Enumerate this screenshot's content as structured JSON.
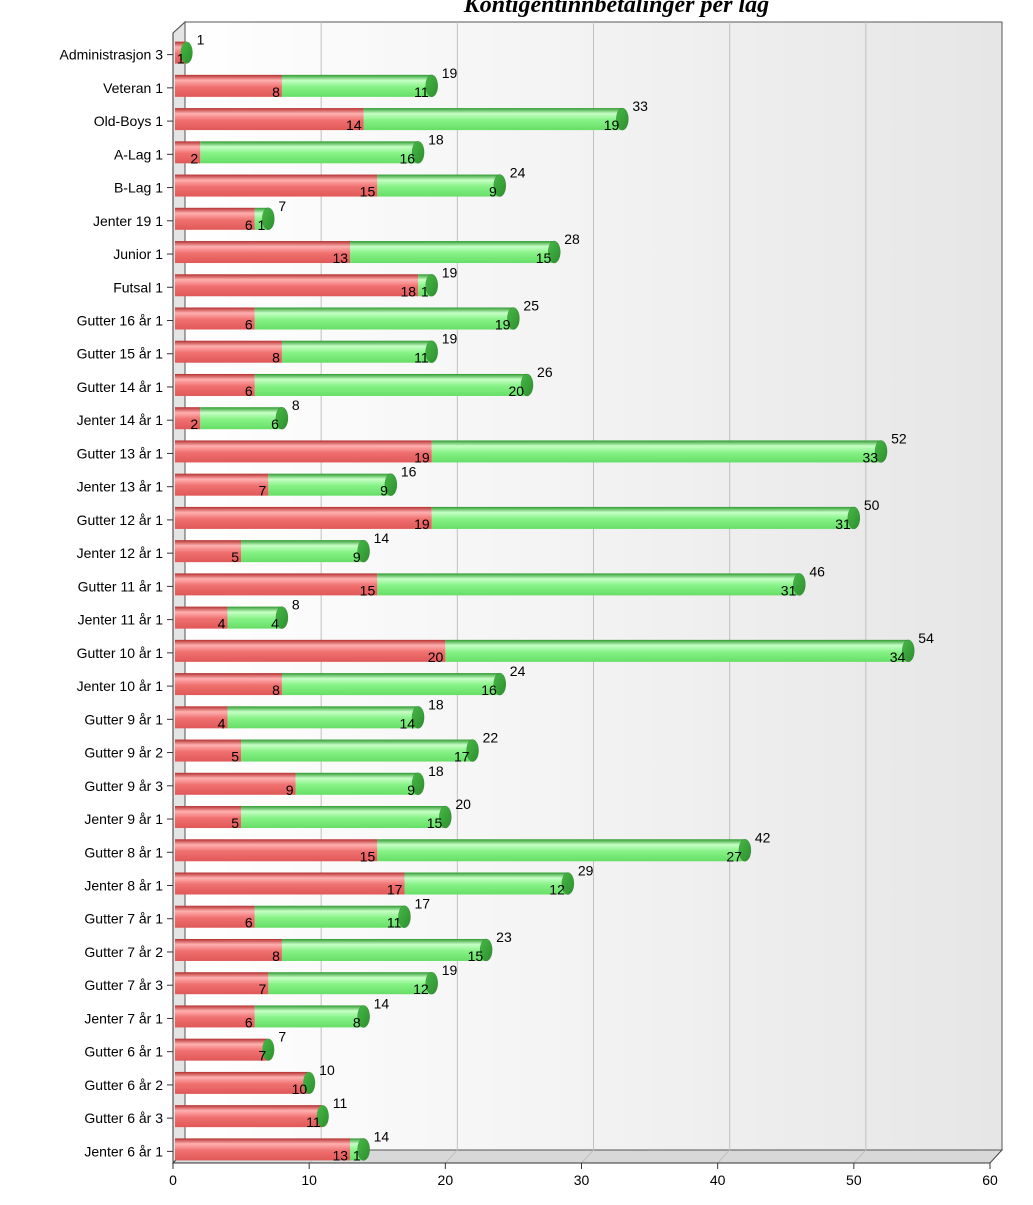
{
  "chart_data": {
    "type": "bar",
    "orientation": "horizontal",
    "stacked": true,
    "title": "Kontigentinnbetalinger per lag",
    "xlabel": "",
    "ylabel": "",
    "xlim": [
      0,
      60
    ],
    "x_ticks": [
      "0",
      "10",
      "20",
      "30",
      "40",
      "50",
      "60"
    ],
    "grid": true,
    "categories": [
      "Administrasjon 3",
      "Veteran 1",
      "Old-Boys 1",
      "A-Lag 1",
      "B-Lag 1",
      "Jenter 19 1",
      "Junior 1",
      "Futsal 1",
      "Gutter 16 år 1",
      "Gutter 15 år 1",
      "Gutter 14 år 1",
      "Jenter 14 år 1",
      "Gutter 13 år 1",
      "Jenter 13 år 1",
      "Gutter 12 år 1",
      "Jenter 12 år 1",
      "Gutter 11 år 1",
      "Jenter 11 år 1",
      "Gutter 10 år 1",
      "Jenter 10 år 1",
      "Gutter 9 år 1",
      "Gutter 9 år 2",
      "Gutter 9 år 3",
      "Jenter 9 år 1",
      "Gutter 8 år 1",
      "Jenter 8 år 1",
      "Gutter 7 år 1",
      "Gutter 7 år 2",
      "Gutter 7 år 3",
      "Jenter 7 år 1",
      "Gutter 6 år 1",
      "Gutter 6 år 2",
      "Gutter 6 år 3",
      "Jenter 6 år 1"
    ],
    "series": [
      {
        "name": "red",
        "color": "#e85a5a",
        "values": [
          1,
          8,
          14,
          2,
          15,
          6,
          13,
          18,
          6,
          8,
          6,
          2,
          19,
          7,
          19,
          5,
          15,
          4,
          20,
          8,
          4,
          5,
          9,
          5,
          15,
          17,
          6,
          8,
          7,
          6,
          7,
          10,
          11,
          13
        ]
      },
      {
        "name": "green",
        "color": "#5cd65c",
        "values": [
          0,
          11,
          19,
          16,
          9,
          1,
          15,
          1,
          19,
          11,
          20,
          6,
          33,
          9,
          31,
          9,
          31,
          4,
          34,
          16,
          14,
          17,
          9,
          15,
          27,
          12,
          11,
          15,
          12,
          8,
          0,
          0,
          0,
          1
        ]
      }
    ],
    "red_labels": [
      "1",
      "8",
      "14",
      "2",
      "15",
      "6",
      "13",
      "18",
      "6",
      "8",
      "6",
      "2",
      "19",
      "7",
      "19",
      "5",
      "15",
      "4",
      "20",
      "8",
      "4",
      "5",
      "9",
      "5",
      "15",
      "17",
      "6",
      "8",
      "7",
      "6",
      "7",
      "10",
      "11",
      "13"
    ],
    "green_labels": [
      "",
      "11",
      "19",
      "16",
      "9",
      "1",
      "15",
      "1",
      "19",
      "11",
      "20",
      "6",
      "33",
      "9",
      "31",
      "9",
      "31",
      "4",
      "34",
      "16",
      "14",
      "17",
      "9",
      "15",
      "27",
      "12",
      "11",
      "15",
      "12",
      "8",
      "",
      "",
      "",
      "1"
    ],
    "total_labels": [
      "1",
      "19",
      "33",
      "18",
      "24",
      "7",
      "28",
      "19",
      "25",
      "19",
      "26",
      "8",
      "52",
      "16",
      "50",
      "14",
      "46",
      "8",
      "54",
      "24",
      "18",
      "22",
      "18",
      "20",
      "42",
      "29",
      "17",
      "23",
      "19",
      "14",
      "7",
      "10",
      "11",
      "14"
    ]
  }
}
